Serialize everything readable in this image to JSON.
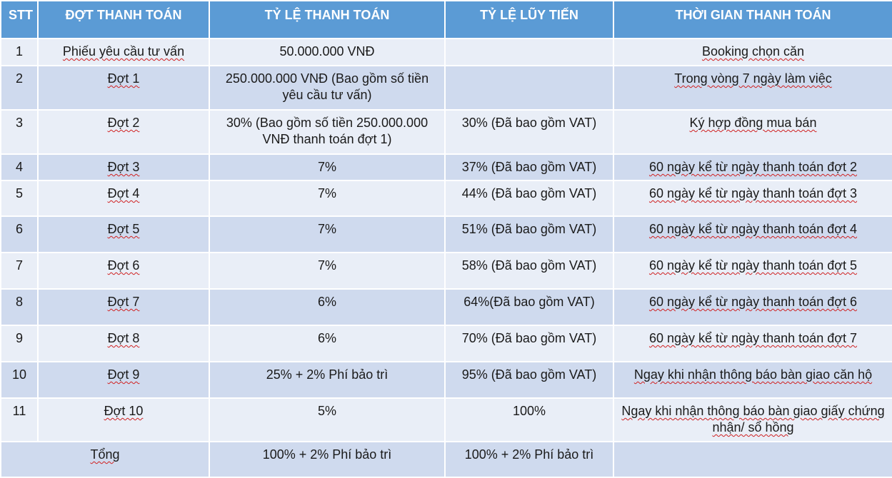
{
  "headers": {
    "stt": "STT",
    "dot": "ĐỢT THANH TOÁN",
    "tyle": "TỶ LỆ THANH TOÁN",
    "luytien": "TỶ LỆ LŨY TIẾN",
    "thoigian": "THỜI GIAN THANH TOÁN"
  },
  "rows": [
    {
      "stt": "1",
      "dot": "Phiếu yêu cầu tư vấn",
      "tyle": "50.000.000 VNĐ",
      "luytien": "",
      "thoigian": "Booking chọn căn"
    },
    {
      "stt": "2",
      "dot": "Đợt 1",
      "tyle": "250.000.000 VNĐ (Bao gồm số tiền yêu cầu tư vấn)",
      "luytien": "",
      "thoigian": "Trong vòng 7 ngày làm việc"
    },
    {
      "stt": "3",
      "dot": "Đợt 2",
      "tyle": "30% (Bao gồm số tiền 250.000.000 VNĐ thanh toán đợt 1)",
      "luytien": "30% (Đã bao gồm VAT)",
      "thoigian": "Ký hợp đồng mua bán"
    },
    {
      "stt": "4",
      "dot": "Đợt 3",
      "tyle": "7%",
      "luytien": "37% (Đã bao gồm VAT)",
      "thoigian": "60 ngày kể từ ngày thanh toán đợt 2"
    },
    {
      "stt": "5",
      "dot": "Đợt 4",
      "tyle": "7%",
      "luytien": "44% (Đã bao gồm VAT)",
      "thoigian": "60 ngày kể từ ngày thanh toán đợt 3"
    },
    {
      "stt": "6",
      "dot": "Đợt 5",
      "tyle": "7%",
      "luytien": "51% (Đã bao gồm VAT)",
      "thoigian": "60 ngày kể từ ngày thanh toán đợt 4"
    },
    {
      "stt": "7",
      "dot": "Đợt 6",
      "tyle": "7%",
      "luytien": "58% (Đã bao gồm VAT)",
      "thoigian": "60 ngày kể từ ngày thanh toán đợt 5"
    },
    {
      "stt": "8",
      "dot": "Đợt 7",
      "tyle": "6%",
      "luytien": "64%(Đã bao gồm VAT)",
      "thoigian": "60 ngày kể từ ngày thanh toán đợt 6"
    },
    {
      "stt": "9",
      "dot": "Đợt 8",
      "tyle": "6%",
      "luytien": "70% (Đã bao gồm VAT)",
      "thoigian": "60 ngày kể từ ngày thanh toán đợt 7"
    },
    {
      "stt": "10",
      "dot": "Đợt 9",
      "tyle": "25% + 2% Phí bảo trì",
      "luytien": "95% (Đã bao gồm VAT)",
      "thoigian": "Ngay khi nhận thông báo bàn giao căn hộ"
    },
    {
      "stt": "11",
      "dot": "Đợt 10",
      "tyle": "5%",
      "luytien": "100%",
      "thoigian": "Ngay khi nhận thông báo bàn giao giấy chứng nhận/ sổ hồng"
    }
  ],
  "total": {
    "label": "Tổng",
    "tyle": "100% + 2% Phí bảo trì",
    "luytien": "100% + 2% Phí bảo trì",
    "thoigian": ""
  }
}
